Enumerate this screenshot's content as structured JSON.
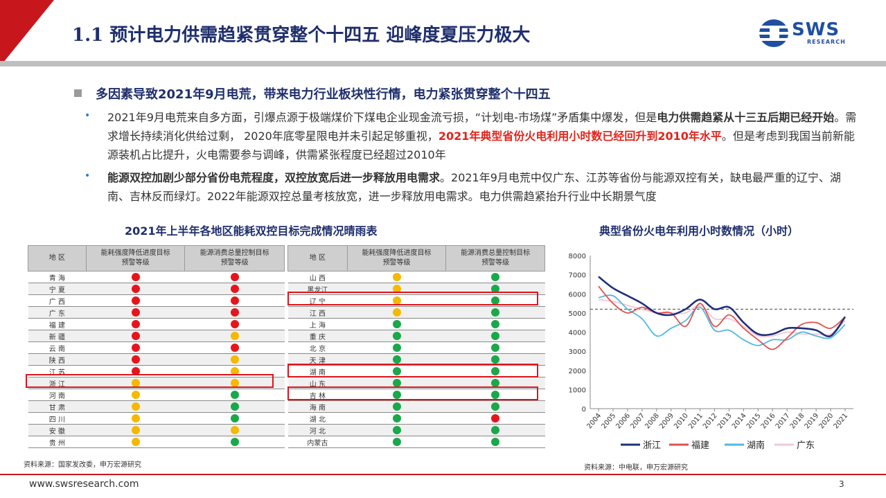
{
  "title": "1.1 预计电力供需趋紧贯穿整个十四五 迎峰度夏压力极大",
  "logo": {
    "text": "SWS",
    "sub": "RESEARCH"
  },
  "heading": "多因素导致2021年9月电荒，带来电力行业板块性行情，电力紧张贯穿整个十四五",
  "bullets": [
    {
      "parts": [
        {
          "t": "2021年9月电荒来自多方面，引爆点源于极端煤价下煤电企业现金流亏损，“计划电-市场煤”矛盾集中爆发，但是",
          "s": "n"
        },
        {
          "t": "电力供需趋紧从十三五后期已经开始",
          "s": "b"
        },
        {
          "t": "。需求增长持续消化供给过剩，  2020年底零星限电并未引起足够重视，",
          "s": "n"
        },
        {
          "t": "2021年典型省份火电利用小时数已经回升到2010年水平",
          "s": "r"
        },
        {
          "t": "。但是考虑到我国当前新能源装机占比提升，火电需要参与调峰，供需紧张程度已经超过2010年",
          "s": "n"
        }
      ]
    },
    {
      "parts": [
        {
          "t": "能源双控加剧少部分省份电荒程度，双控放宽后进一步释放用电需求",
          "s": "b"
        },
        {
          "t": "。2021年9月电荒中仅广东、江苏等省份与能源双控有关，缺电最严重的辽宁、湖南、吉林反而绿灯。2022年能源双控总量考核放宽，进一步释放用电需求。电力供需趋紧抬升行业中长期景气度",
          "s": "n"
        }
      ]
    }
  ],
  "table_title": "2021年上半年各地区能耗双控目标完成情况晴雨表",
  "table_headers": [
    "地  区",
    "能耗强度降低进度目标\n预警等级",
    "能源消费总量控制目标\n预警等级"
  ],
  "status_colors": {
    "r": "#e8141b",
    "y": "#f6b800",
    "g": "#1aa84a"
  },
  "table_left": [
    {
      "region": "青  海",
      "a": "r",
      "b": "r"
    },
    {
      "region": "宁  夏",
      "a": "r",
      "b": "r"
    },
    {
      "region": "广  西",
      "a": "r",
      "b": "r"
    },
    {
      "region": "广  东",
      "a": "r",
      "b": "r"
    },
    {
      "region": "福  建",
      "a": "r",
      "b": "r"
    },
    {
      "region": "新  疆",
      "a": "r",
      "b": "y"
    },
    {
      "region": "云  南",
      "a": "r",
      "b": "r"
    },
    {
      "region": "陕  西",
      "a": "r",
      "b": "y"
    },
    {
      "region": "江  苏",
      "a": "r",
      "b": "y"
    },
    {
      "region": "浙  江",
      "a": "y",
      "b": "y"
    },
    {
      "region": "河  南",
      "a": "y",
      "b": "g"
    },
    {
      "region": "甘  肃",
      "a": "y",
      "b": "g"
    },
    {
      "region": "四  川",
      "a": "y",
      "b": "g"
    },
    {
      "region": "安  徽",
      "a": "y",
      "b": "y"
    },
    {
      "region": "贵  州",
      "a": "y",
      "b": "g"
    }
  ],
  "table_right": [
    {
      "region": "山  西",
      "a": "y",
      "b": "g"
    },
    {
      "region": "黑龙江",
      "a": "y",
      "b": "g"
    },
    {
      "region": "辽  宁",
      "a": "y",
      "b": "g"
    },
    {
      "region": "江  西",
      "a": "y",
      "b": "g"
    },
    {
      "region": "上  海",
      "a": "g",
      "b": "g"
    },
    {
      "region": "重  庆",
      "a": "g",
      "b": "g"
    },
    {
      "region": "北  京",
      "a": "g",
      "b": "g"
    },
    {
      "region": "天  津",
      "a": "g",
      "b": "g"
    },
    {
      "region": "湖  南",
      "a": "g",
      "b": "g"
    },
    {
      "region": "山  东",
      "a": "g",
      "b": "g"
    },
    {
      "region": "吉  林",
      "a": "g",
      "b": "g"
    },
    {
      "region": "海  南",
      "a": "g",
      "b": "g"
    },
    {
      "region": "湖  北",
      "a": "g",
      "b": "r"
    },
    {
      "region": "河  北",
      "a": "g",
      "b": "g"
    },
    {
      "region": "内蒙古",
      "a": "g",
      "b": "g"
    }
  ],
  "table_source": "资料来源：国家发改委，申万宏源研究",
  "chart_title": "典型省份火电年利用小时数情况（小时）",
  "chart_source": "资料来源：中电联，申万宏源研究",
  "chart_data": {
    "type": "line",
    "x": [
      "2004",
      "2005",
      "2006",
      "2007",
      "2008",
      "2009",
      "2010",
      "2011",
      "2012",
      "2013",
      "2014",
      "2015",
      "2016",
      "2017",
      "2018",
      "2019",
      "2020",
      "2021"
    ],
    "ylim": [
      0,
      8000
    ],
    "yticks": [
      0,
      1000,
      2000,
      3000,
      4000,
      5000,
      6000,
      7000,
      8000
    ],
    "reference_line": 5200,
    "legend_position": "bottom",
    "series": [
      {
        "name": "浙江",
        "color": "#1f2f7a",
        "values": [
          6900,
          6300,
          5900,
          5500,
          5000,
          4900,
          5200,
          5700,
          5200,
          5300,
          4500,
          3900,
          3900,
          4200,
          4200,
          4100,
          3800,
          4800
        ]
      },
      {
        "name": "福建",
        "color": "#e05050",
        "values": [
          6400,
          5500,
          5000,
          5300,
          5000,
          5000,
          4300,
          5500,
          4300,
          4900,
          4200,
          3600,
          3100,
          3700,
          4400,
          4500,
          4200,
          4800
        ]
      },
      {
        "name": "湖南",
        "color": "#4fb8e0",
        "values": [
          5800,
          5900,
          5200,
          4700,
          3800,
          4200,
          4600,
          5300,
          4100,
          4100,
          3600,
          3300,
          3600,
          3600,
          4000,
          3800,
          3700,
          4400
        ]
      },
      {
        "name": "广东",
        "color": "#f2c8d2",
        "values": [
          5700,
          5600,
          5400,
          5200,
          5000,
          5000,
          5000,
          5400,
          4700,
          4700,
          4300,
          3800,
          3800,
          4000,
          3900,
          3900,
          3900,
          4600
        ]
      }
    ]
  },
  "footer": {
    "url": "www.swsresearch.com",
    "page": "3"
  }
}
